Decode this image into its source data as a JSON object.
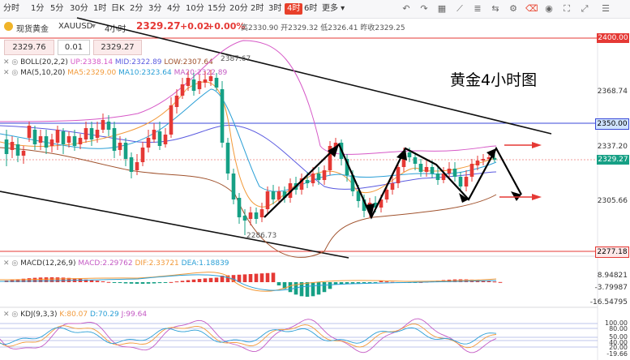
{
  "toolbar": {
    "timeframes": [
      "分时",
      "1分",
      "5分",
      "30分",
      "1时",
      "日K",
      "2分",
      "3分",
      "4分",
      "10分",
      "15分",
      "20分",
      "2时",
      "3时",
      "4时",
      "6时"
    ],
    "active": "4时",
    "more_label": "更多",
    "icons": [
      "undo-icon",
      "redo-icon",
      "layout-icon",
      "draw-icon",
      "indicator-icon",
      "compare-icon",
      "settings-icon",
      "eraser-icon",
      "camera-icon",
      "fullscreen-icon",
      "expand-icon",
      "menu-icon"
    ]
  },
  "info": {
    "symbol": "现货黄金",
    "code": "XAUUSD",
    "interval": "4小时",
    "price": "2329.27",
    "change": "+0.02",
    "change_pct": "+0.00%",
    "high_label": "高",
    "high": "2330.90",
    "open_label": "开",
    "open": "2329.32",
    "low_label": "低",
    "low": "2326.41",
    "prev_label": "昨收",
    "prev": "2329.25"
  },
  "order": {
    "sell_price": "2329.76",
    "qty": "0.01",
    "buy_price": "2329.27"
  },
  "boll": {
    "label": "BOLL(20,2,2)",
    "up": "UP:2338.14",
    "mid": "MID:2322.89",
    "low": "LOW:2307.64"
  },
  "ma": {
    "label": "MA(5,10,20)",
    "ma5": "MA5:2329.00",
    "ma10": "MA10:2323.64",
    "ma20": "MA20:2322.89"
  },
  "macd": {
    "label": "MACD(12,26,9)",
    "macd": "MACD:2.29762",
    "dif": "DIF:2.33721",
    "dea": "DEA:1.18839"
  },
  "kdj": {
    "label": "KDJ(9,3,3)",
    "k": "K:80.07",
    "d": "D:70.29",
    "j": "J:99.64"
  },
  "annotation": {
    "title": "黄金4小时图",
    "high_mark": "2387.67",
    "low_mark": "2286.73"
  },
  "price_axis": {
    "labels": [
      "2400.00",
      "2368.74",
      "2337.20",
      "2305.66",
      "2277.18"
    ],
    "hline_tag": "2350.00",
    "current_tag": "2329.27",
    "red_tag": "2277.18"
  },
  "macd_axis": [
    "8.94821",
    "-3.79987",
    "-16.54795"
  ],
  "kdj_axis": [
    "100.00",
    "80.00",
    "50.00",
    "40.00",
    "20.00",
    "-19.66"
  ],
  "colors": {
    "up": "#e53935",
    "down": "#16a085",
    "accent": "#e8402b",
    "hline": "#3a4ad8"
  }
}
